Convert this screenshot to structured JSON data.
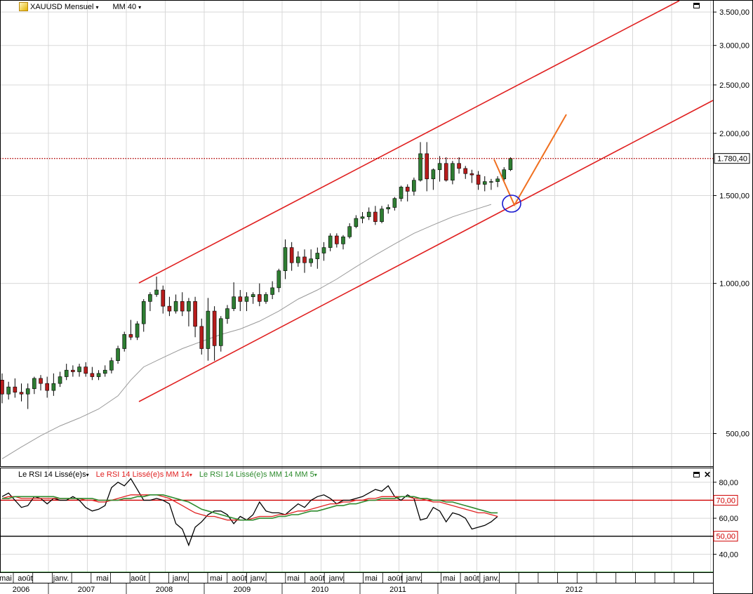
{
  "header": {
    "symbol_label": "XAUUSD Mensuel",
    "ma_label": "MM 40",
    "caret": "▾"
  },
  "rsi_header": {
    "rsi_label": "Le RSI 14 Lissé(e)s",
    "rsi_ma_label": "Le RSI 14 Lissé(e)s MM 14",
    "rsi_ma5_label": "Le RSI 14 Lissé(e)s MM 14 MM 5",
    "close_symbol": "✕"
  },
  "colors": {
    "candle_up": "#2e7d32",
    "candle_down": "#b71c1c",
    "channel": "#e02020",
    "projection": "#f07020",
    "circle": "#1a1ad0",
    "ma40": "#999999",
    "rsi": "#000000",
    "rsi_ma": "#e02020",
    "rsi_ma5": "#2e8b2e",
    "grid": "#d8d8d8"
  },
  "chart_data": [
    {
      "type": "candlestick",
      "title": "XAUUSD Mensuel",
      "scale": "log",
      "ylim": [
        430,
        3700
      ],
      "y_ticks": [
        "3.500,00",
        "3.000,00",
        "2.500,00",
        "2.000,00",
        "1.500,00",
        "1.000,00",
        "500,00"
      ],
      "y_tick_values": [
        3500,
        3000,
        2500,
        2000,
        1500,
        1000,
        500
      ],
      "last_price_label": "1.780,40",
      "last_price": 1780.4,
      "start": "2006-05",
      "candles": [
        [
          640,
          660,
          575,
          600
        ],
        [
          600,
          635,
          585,
          620
        ],
        [
          620,
          645,
          590,
          605
        ],
        [
          605,
          630,
          580,
          600
        ],
        [
          600,
          630,
          560,
          615
        ],
        [
          615,
          650,
          600,
          645
        ],
        [
          645,
          655,
          610,
          630
        ],
        [
          630,
          650,
          590,
          610
        ],
        [
          610,
          660,
          595,
          630
        ],
        [
          630,
          665,
          620,
          650
        ],
        [
          650,
          690,
          640,
          670
        ],
        [
          670,
          685,
          650,
          665
        ],
        [
          665,
          690,
          650,
          680
        ],
        [
          680,
          695,
          650,
          660
        ],
        [
          660,
          680,
          640,
          650
        ],
        [
          650,
          670,
          640,
          660
        ],
        [
          660,
          685,
          650,
          670
        ],
        [
          670,
          710,
          660,
          700
        ],
        [
          700,
          750,
          690,
          740
        ],
        [
          740,
          800,
          730,
          790
        ],
        [
          790,
          845,
          770,
          780
        ],
        [
          780,
          840,
          770,
          830
        ],
        [
          830,
          930,
          800,
          920
        ],
        [
          920,
          960,
          880,
          950
        ],
        [
          950,
          1032,
          940,
          970
        ],
        [
          970,
          990,
          870,
          900
        ],
        [
          900,
          940,
          860,
          880
        ],
        [
          880,
          950,
          870,
          920
        ],
        [
          920,
          960,
          860,
          880
        ],
        [
          880,
          935,
          820,
          920
        ],
        [
          920,
          940,
          780,
          820
        ],
        [
          820,
          850,
          720,
          740
        ],
        [
          740,
          935,
          700,
          880
        ],
        [
          880,
          900,
          700,
          750
        ],
        [
          750,
          860,
          730,
          850
        ],
        [
          850,
          905,
          830,
          890
        ],
        [
          890,
          1005,
          880,
          940
        ],
        [
          940,
          970,
          880,
          920
        ],
        [
          920,
          960,
          880,
          940
        ],
        [
          940,
          960,
          910,
          950
        ],
        [
          950,
          1000,
          900,
          920
        ],
        [
          920,
          960,
          910,
          950
        ],
        [
          950,
          1010,
          930,
          980
        ],
        [
          980,
          1070,
          960,
          1060
        ],
        [
          1060,
          1225,
          1020,
          1180
        ],
        [
          1180,
          1210,
          1060,
          1100
        ],
        [
          1100,
          1160,
          1080,
          1130
        ],
        [
          1130,
          1170,
          1050,
          1100
        ],
        [
          1100,
          1170,
          1080,
          1120
        ],
        [
          1120,
          1180,
          1070,
          1150
        ],
        [
          1150,
          1210,
          1110,
          1180
        ],
        [
          1180,
          1260,
          1160,
          1245
        ],
        [
          1245,
          1260,
          1180,
          1200
        ],
        [
          1200,
          1250,
          1170,
          1240
        ],
        [
          1240,
          1320,
          1230,
          1300
        ],
        [
          1300,
          1370,
          1290,
          1350
        ],
        [
          1350,
          1390,
          1320,
          1360
        ],
        [
          1360,
          1420,
          1340,
          1390
        ],
        [
          1390,
          1430,
          1310,
          1330
        ],
        [
          1330,
          1430,
          1320,
          1410
        ],
        [
          1410,
          1440,
          1380,
          1420
        ],
        [
          1420,
          1490,
          1400,
          1480
        ],
        [
          1480,
          1570,
          1460,
          1560
        ],
        [
          1560,
          1580,
          1460,
          1530
        ],
        [
          1530,
          1630,
          1500,
          1610
        ],
        [
          1610,
          1920,
          1600,
          1820
        ],
        [
          1820,
          1920,
          1530,
          1620
        ],
        [
          1620,
          1700,
          1540,
          1690
        ],
        [
          1690,
          1800,
          1600,
          1740
        ],
        [
          1740,
          1790,
          1600,
          1610
        ],
        [
          1610,
          1760,
          1580,
          1740
        ],
        [
          1740,
          1790,
          1660,
          1700
        ],
        [
          1700,
          1720,
          1620,
          1660
        ],
        [
          1660,
          1690,
          1590,
          1650
        ],
        [
          1650,
          1680,
          1540,
          1580
        ],
        [
          1580,
          1640,
          1530,
          1600
        ],
        [
          1600,
          1620,
          1540,
          1600
        ],
        [
          1600,
          1640,
          1560,
          1620
        ],
        [
          1620,
          1710,
          1600,
          1690
        ],
        [
          1690,
          1790,
          1680,
          1780
        ]
      ],
      "ma40": [
        [
          0,
          445
        ],
        [
          3,
          470
        ],
        [
          6,
          495
        ],
        [
          9,
          518
        ],
        [
          12,
          537
        ],
        [
          15,
          560
        ],
        [
          18,
          595
        ],
        [
          20,
          640
        ],
        [
          22,
          680
        ],
        [
          25,
          710
        ],
        [
          28,
          740
        ],
        [
          31,
          765
        ],
        [
          34,
          790
        ],
        [
          37,
          810
        ],
        [
          40,
          840
        ],
        [
          43,
          880
        ],
        [
          46,
          930
        ],
        [
          49,
          970
        ],
        [
          52,
          1020
        ],
        [
          55,
          1080
        ],
        [
          58,
          1140
        ],
        [
          61,
          1200
        ],
        [
          64,
          1260
        ],
        [
          67,
          1310
        ],
        [
          70,
          1360
        ],
        [
          73,
          1400
        ],
        [
          76,
          1440
        ]
      ],
      "x_axis": {
        "months": [
          "mai",
          "août",
          "janv.",
          "mai",
          "août",
          "janv.",
          "mai",
          "août",
          "janv.",
          "mai",
          "août",
          "janv.",
          "mai",
          "août",
          "janv.",
          "mai",
          "août",
          "janv.",
          "mai",
          "août"
        ],
        "years": [
          "2006",
          "2007",
          "2008",
          "2009",
          "2010",
          "2011",
          "2012"
        ]
      },
      "annotations": {
        "channel": "upward channel",
        "projection": "pullback then rebound"
      }
    },
    {
      "type": "line",
      "title": "Le RSI 14 Lissé(e)s",
      "ylim": [
        30,
        85
      ],
      "y_ticks": [
        "80,00",
        "60,00",
        "40,00"
      ],
      "y_tick_values": [
        80,
        60,
        40
      ],
      "level_labels": [
        "70,00",
        "50,00"
      ],
      "levels": [
        70,
        50,
        30
      ],
      "series": [
        {
          "name": "Le RSI 14 Lissé(e)s",
          "values": [
            72,
            74,
            70,
            66,
            67,
            72,
            71,
            68,
            71,
            70,
            70,
            72,
            70,
            66,
            64,
            65,
            67,
            77,
            80,
            78,
            82,
            76,
            70,
            70,
            71,
            70,
            68,
            57,
            54,
            45,
            55,
            58,
            62,
            64,
            64,
            62,
            57,
            61,
            59,
            62,
            69,
            64,
            63,
            63,
            62,
            65,
            68,
            66,
            70,
            72,
            73,
            71,
            68,
            70,
            70,
            71,
            72,
            74,
            76,
            75,
            78,
            72,
            70,
            73,
            71,
            59,
            60,
            66,
            64,
            58,
            63,
            62,
            60,
            54,
            55,
            56,
            58,
            61
          ]
        },
        {
          "name": "Le RSI 14 Lissé(e)s MM 14",
          "values": [
            71,
            72,
            72,
            71,
            71,
            71,
            71,
            71,
            71,
            71,
            71,
            71,
            71,
            70,
            70,
            69,
            69,
            70,
            71,
            72,
            73,
            73,
            73,
            73,
            73,
            72,
            71,
            69,
            67,
            65,
            63,
            62,
            61,
            61,
            60,
            59,
            59,
            59,
            59,
            60,
            61,
            61,
            61,
            62,
            62,
            63,
            64,
            64,
            65,
            66,
            67,
            68,
            68,
            69,
            69,
            70,
            70,
            71,
            71,
            72,
            72,
            72,
            72,
            72,
            71,
            71,
            70,
            69,
            69,
            68,
            67,
            66,
            65,
            64,
            63,
            63,
            62,
            61
          ]
        },
        {
          "name": "Le RSI 14 Lissé(e)s MM 14 MM 5",
          "values": [
            71,
            71,
            72,
            72,
            72,
            72,
            72,
            72,
            72,
            71,
            71,
            71,
            71,
            71,
            71,
            70,
            70,
            70,
            70,
            71,
            71,
            72,
            72,
            73,
            73,
            73,
            72,
            71,
            70,
            69,
            67,
            65,
            64,
            63,
            62,
            61,
            60,
            59,
            59,
            59,
            60,
            60,
            60,
            61,
            61,
            62,
            62,
            63,
            64,
            64,
            65,
            66,
            67,
            67,
            68,
            68,
            69,
            70,
            70,
            71,
            71,
            71,
            72,
            72,
            72,
            71,
            71,
            70,
            70,
            69,
            69,
            68,
            67,
            66,
            65,
            64,
            63,
            63
          ]
        }
      ]
    }
  ]
}
